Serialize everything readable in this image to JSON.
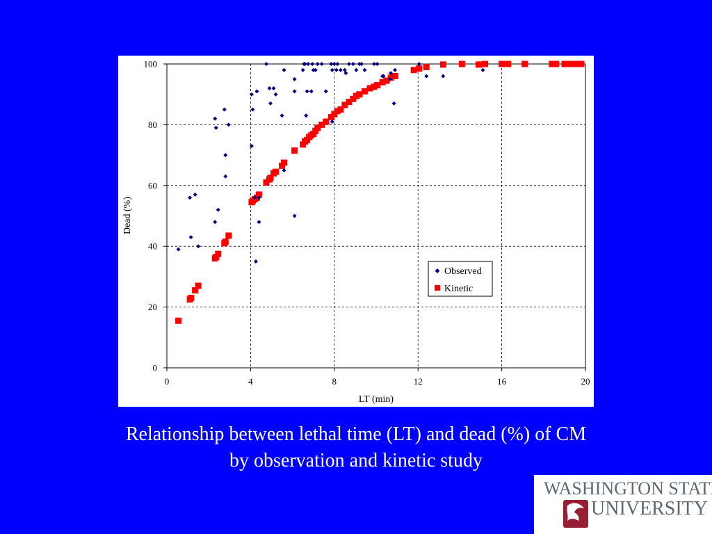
{
  "slide": {
    "background": "#0000ff",
    "caption_line1": "Relationship between lethal time (LT) and dead (%) of CM",
    "caption_line2": "by observation and kinetic study"
  },
  "logo": {
    "line1": "WASHINGTON STATE",
    "line2": "UNIVERSITY",
    "color": "#5e6a71",
    "mark_color": "#981e32"
  },
  "chart_data": {
    "type": "scatter",
    "xlabel": "LT (min)",
    "ylabel": "Dead (%)",
    "xlim": [
      0,
      20
    ],
    "ylim": [
      0,
      100
    ],
    "xticks": [
      0,
      4,
      8,
      12,
      16,
      20
    ],
    "yticks": [
      0,
      20,
      40,
      60,
      80,
      100
    ],
    "grid": "dashed, major ticks",
    "legend_position": "lower-right",
    "series": [
      {
        "name": "Observed",
        "color": "#000080",
        "marker": "diamond",
        "points": [
          [
            0.55,
            39
          ],
          [
            1.1,
            56
          ],
          [
            1.15,
            43
          ],
          [
            1.35,
            57
          ],
          [
            1.5,
            40
          ],
          [
            2.3,
            82
          ],
          [
            2.35,
            79
          ],
          [
            2.3,
            48
          ],
          [
            2.45,
            52
          ],
          [
            2.75,
            85
          ],
          [
            2.8,
            70
          ],
          [
            2.8,
            63
          ],
          [
            2.95,
            80
          ],
          [
            4.05,
            90
          ],
          [
            4.05,
            73
          ],
          [
            4.1,
            85
          ],
          [
            4.2,
            56
          ],
          [
            4.25,
            35
          ],
          [
            4.3,
            91
          ],
          [
            4.4,
            48
          ],
          [
            4.4,
            56
          ],
          [
            4.75,
            100
          ],
          [
            4.9,
            92
          ],
          [
            4.95,
            87
          ],
          [
            5.1,
            92
          ],
          [
            5.2,
            90
          ],
          [
            5.5,
            83
          ],
          [
            5.6,
            98
          ],
          [
            5.6,
            65
          ],
          [
            6.1,
            95
          ],
          [
            6.1,
            91
          ],
          [
            6.1,
            50
          ],
          [
            6.5,
            98
          ],
          [
            6.55,
            100
          ],
          [
            6.65,
            83
          ],
          [
            6.6,
            100
          ],
          [
            6.75,
            100
          ],
          [
            6.7,
            91
          ],
          [
            6.9,
            91
          ],
          [
            6.95,
            100
          ],
          [
            7.0,
            98
          ],
          [
            7.1,
            98
          ],
          [
            7.2,
            100
          ],
          [
            7.4,
            100
          ],
          [
            7.6,
            91
          ],
          [
            7.85,
            100
          ],
          [
            7.9,
            98
          ],
          [
            7.9,
            81
          ],
          [
            8.0,
            100
          ],
          [
            8.1,
            98
          ],
          [
            8.15,
            100
          ],
          [
            8.3,
            98
          ],
          [
            8.5,
            98
          ],
          [
            8.55,
            97
          ],
          [
            8.7,
            100
          ],
          [
            8.9,
            100
          ],
          [
            9.05,
            98
          ],
          [
            9.2,
            100
          ],
          [
            9.3,
            100
          ],
          [
            9.45,
            98
          ],
          [
            9.9,
            100
          ],
          [
            10.05,
            100
          ],
          [
            10.3,
            96
          ],
          [
            10.35,
            96
          ],
          [
            10.65,
            95
          ],
          [
            10.7,
            97
          ],
          [
            10.85,
            87
          ],
          [
            10.9,
            98
          ],
          [
            12.05,
            100
          ],
          [
            12.4,
            96
          ],
          [
            13.2,
            96
          ],
          [
            15.1,
            98
          ]
        ]
      },
      {
        "name": "Kinetic",
        "color": "#ff0000",
        "marker": "square",
        "points": [
          [
            0.55,
            15.5
          ],
          [
            1.1,
            22.5
          ],
          [
            1.15,
            23
          ],
          [
            1.35,
            25.5
          ],
          [
            1.5,
            27
          ],
          [
            2.3,
            36
          ],
          [
            2.35,
            36.5
          ],
          [
            2.45,
            37.5
          ],
          [
            2.75,
            41
          ],
          [
            2.8,
            41.5
          ],
          [
            2.95,
            43.5
          ],
          [
            4.05,
            54.5
          ],
          [
            4.1,
            55
          ],
          [
            4.2,
            55.5
          ],
          [
            4.3,
            56
          ],
          [
            4.4,
            57
          ],
          [
            4.75,
            61
          ],
          [
            4.9,
            62
          ],
          [
            4.95,
            62.5
          ],
          [
            5.1,
            64
          ],
          [
            5.2,
            64.5
          ],
          [
            5.5,
            66.5
          ],
          [
            5.6,
            67.5
          ],
          [
            6.1,
            71.5
          ],
          [
            6.5,
            73.5
          ],
          [
            6.6,
            74.5
          ],
          [
            6.7,
            75
          ],
          [
            6.8,
            76
          ],
          [
            6.9,
            76.5
          ],
          [
            7.0,
            77
          ],
          [
            7.1,
            78
          ],
          [
            7.2,
            79
          ],
          [
            7.4,
            80
          ],
          [
            7.6,
            81
          ],
          [
            7.85,
            82.5
          ],
          [
            8.0,
            83.5
          ],
          [
            8.15,
            84.5
          ],
          [
            8.3,
            85
          ],
          [
            8.5,
            86.5
          ],
          [
            8.7,
            87.5
          ],
          [
            8.9,
            88.5
          ],
          [
            9.05,
            89.5
          ],
          [
            9.2,
            90
          ],
          [
            9.45,
            91
          ],
          [
            9.7,
            92
          ],
          [
            9.9,
            92.5
          ],
          [
            10.05,
            93
          ],
          [
            10.3,
            94
          ],
          [
            10.5,
            94.5
          ],
          [
            10.7,
            95.5
          ],
          [
            10.9,
            96
          ],
          [
            11.8,
            98
          ],
          [
            12.05,
            98.5
          ],
          [
            12.4,
            99
          ],
          [
            13.2,
            99.8
          ],
          [
            14.1,
            100
          ],
          [
            14.9,
            99.8
          ],
          [
            15.2,
            100
          ],
          [
            16.0,
            100
          ],
          [
            16.3,
            100
          ],
          [
            17.1,
            100
          ],
          [
            18.4,
            100
          ],
          [
            18.6,
            100
          ],
          [
            19.0,
            100
          ],
          [
            19.3,
            100
          ],
          [
            19.5,
            100
          ],
          [
            19.8,
            100
          ]
        ]
      }
    ]
  }
}
